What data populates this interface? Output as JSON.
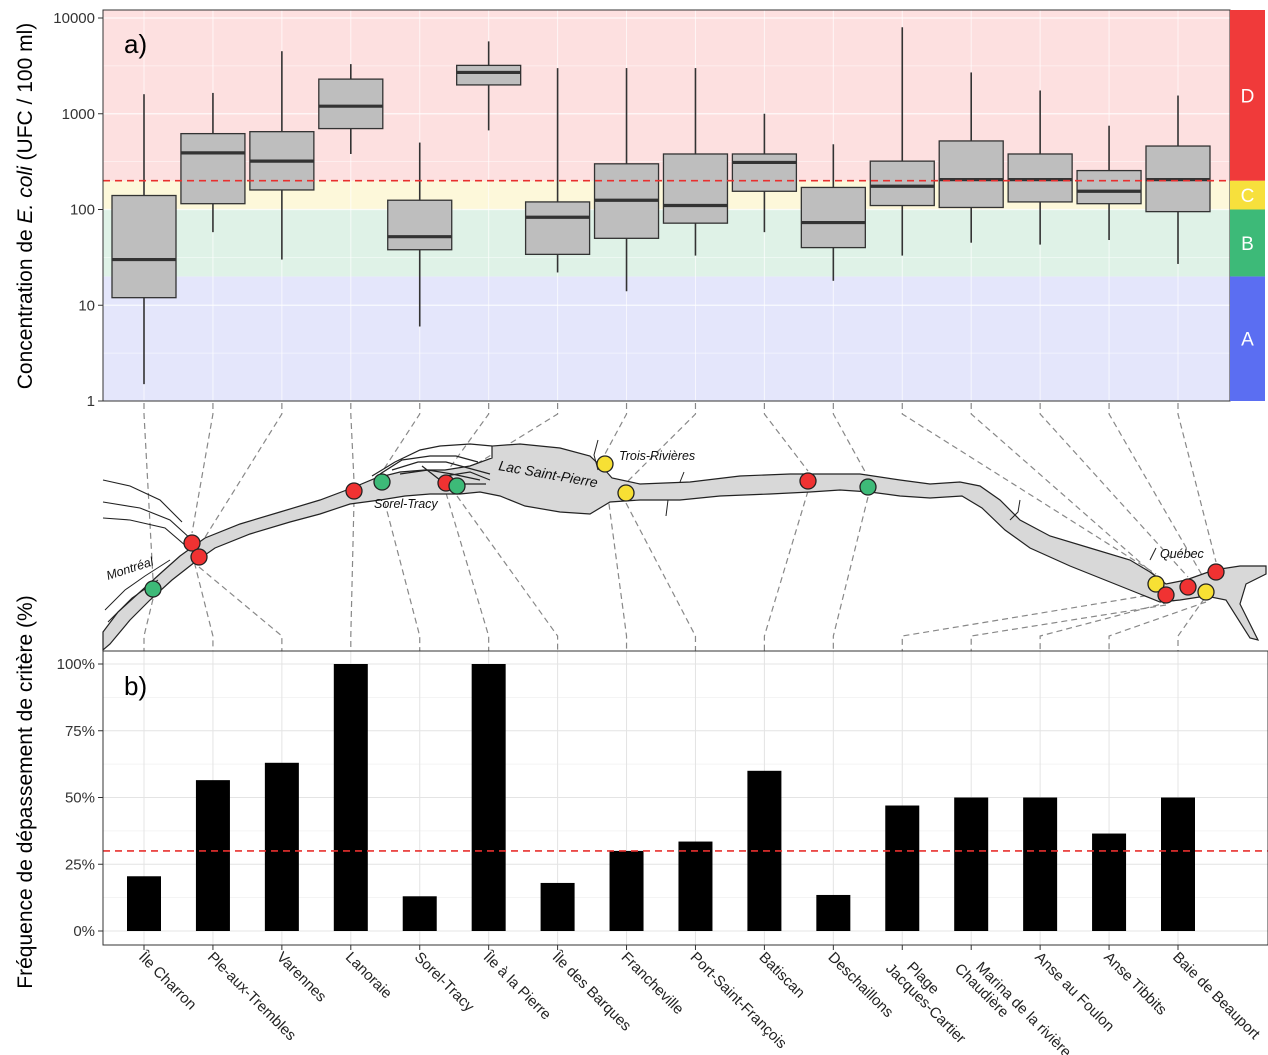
{
  "chart_data": [
    {
      "type": "boxplot",
      "panel_label": "a)",
      "ylabel_prefix": "Concentration de ",
      "ylabel_italic": "E. coli",
      "ylabel_suffix": " (UFC / 100 ml)",
      "yscale": "log",
      "ylim": [
        1,
        10000
      ],
      "yticks": [
        1,
        10,
        100,
        1000,
        10000
      ],
      "ytick_labels": [
        "1",
        "10",
        "100",
        "1000",
        "10000"
      ],
      "threshold": 200,
      "zones": [
        {
          "label": "A",
          "from": 1,
          "to": 20,
          "color": "#5b6ef2",
          "bg": "#e4e6fb"
        },
        {
          "label": "B",
          "from": 20,
          "to": 100,
          "color": "#3dba78",
          "bg": "#dff2e7"
        },
        {
          "label": "C",
          "from": 100,
          "to": 200,
          "color": "#f7e03c",
          "bg": "#fdf8da"
        },
        {
          "label": "D",
          "from": 200,
          "to": 10000,
          "color": "#f03a3a",
          "bg": "#fde0e0"
        }
      ],
      "boxes": [
        {
          "min": 1.5,
          "q1": 12,
          "median": 30,
          "q3": 140,
          "max": 1600
        },
        {
          "min": 58,
          "q1": 115,
          "median": 390,
          "q3": 620,
          "max": 1650
        },
        {
          "min": 30,
          "q1": 160,
          "median": 320,
          "q3": 650,
          "max": 4500
        },
        {
          "min": 380,
          "q1": 700,
          "median": 1200,
          "q3": 2300,
          "max": 3300
        },
        {
          "min": 6,
          "q1": 38,
          "median": 52,
          "q3": 125,
          "max": 500
        },
        {
          "min": 670,
          "q1": 2000,
          "median": 2700,
          "q3": 3200,
          "max": 5700
        },
        {
          "min": 22,
          "q1": 34,
          "median": 83,
          "q3": 120,
          "max": 3000
        },
        {
          "min": 14,
          "q1": 50,
          "median": 125,
          "q3": 300,
          "max": 3000
        },
        {
          "min": 33,
          "q1": 72,
          "median": 110,
          "q3": 380,
          "max": 3000
        },
        {
          "min": 58,
          "q1": 155,
          "median": 310,
          "q3": 380,
          "max": 1000
        },
        {
          "min": 18,
          "q1": 40,
          "median": 73,
          "q3": 170,
          "max": 480
        },
        {
          "min": 33,
          "q1": 110,
          "median": 175,
          "q3": 320,
          "max": 8000
        },
        {
          "min": 45,
          "q1": 105,
          "median": 205,
          "q3": 520,
          "max": 2700
        },
        {
          "min": 43,
          "q1": 120,
          "median": 205,
          "q3": 380,
          "max": 1750
        },
        {
          "min": 48,
          "q1": 115,
          "median": 155,
          "q3": 255,
          "max": 750
        },
        {
          "min": 27,
          "q1": 95,
          "median": 205,
          "q3": 460,
          "max": 1550
        }
      ]
    },
    {
      "type": "bar",
      "panel_label": "b)",
      "ylabel": "Fréquence de dépassement de critère (%)",
      "ylim": [
        0,
        100
      ],
      "yticks": [
        0,
        25,
        50,
        75,
        100
      ],
      "ytick_labels": [
        "0%",
        "25%",
        "50%",
        "75%",
        "100%"
      ],
      "threshold": 30,
      "categories": [
        "Île Charron",
        "Ple-aux-Trembles",
        "Varennes",
        "Lanoraie",
        "Sorel-Tracy",
        "Île à la Pierre",
        "Île des Barques",
        "Francheville",
        "Port-Saint-François",
        "Batiscan",
        "Deschaillons",
        "Plage Jacques-Cartier",
        "Marina de la rivière Chaudière",
        "Anse au Foulon",
        "Anse Tibbits",
        "Baie de Beauport"
      ],
      "category_lines": [
        [
          "Île Charron"
        ],
        [
          "Ple-aux-Trembles"
        ],
        [
          "Varennes"
        ],
        [
          "Lanoraie"
        ],
        [
          "Sorel-Tracy"
        ],
        [
          "Île à la Pierre"
        ],
        [
          "Île des Barques"
        ],
        [
          "Francheville"
        ],
        [
          "Port-Saint-François"
        ],
        [
          "Batiscan"
        ],
        [
          "Deschaillons"
        ],
        [
          "Plage",
          "Jacques-Cartier"
        ],
        [
          "Marina de la rivière",
          "Chaudière"
        ],
        [
          "Anse au Foulon"
        ],
        [
          "Anse Tibbits"
        ],
        [
          "Baie de Beauport"
        ]
      ],
      "values": [
        20.5,
        56.5,
        63,
        100,
        13,
        100,
        18,
        30,
        33.5,
        60,
        13.5,
        47,
        50,
        50,
        36.5,
        50
      ]
    }
  ],
  "map": {
    "labels": [
      "Montréal",
      "Sorel-Tracy",
      "Lac Saint-Pierre",
      "Trois-Rivières",
      "Québec"
    ],
    "station_colors": {
      "red": "#f03232",
      "green": "#3dba78",
      "yellow": "#f7e034"
    }
  }
}
